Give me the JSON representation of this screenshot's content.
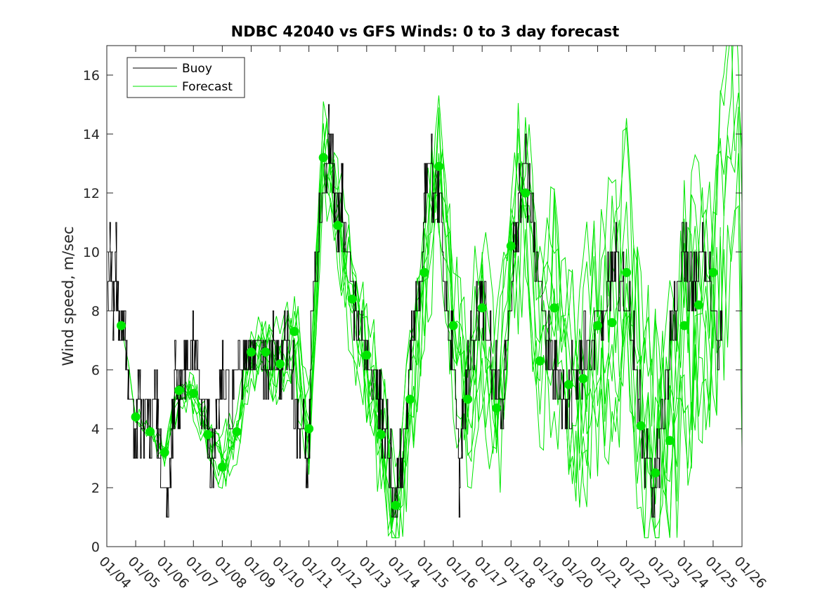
{
  "chart_data": {
    "type": "line",
    "title": "NDBC 42040 vs GFS Winds: 0 to 3 day forecast",
    "xlabel": "",
    "ylabel": "Wind speed, m/sec",
    "xlim": [
      0,
      22
    ],
    "ylim": [
      0,
      17
    ],
    "yticks": [
      0,
      2,
      4,
      6,
      8,
      10,
      12,
      14,
      16
    ],
    "xtick_labels": [
      "01/04",
      "01/05",
      "01/06",
      "01/07",
      "01/08",
      "01/09",
      "01/10",
      "01/11",
      "01/12",
      "01/13",
      "01/14",
      "01/15",
      "01/16",
      "01/17",
      "01/18",
      "01/19",
      "01/20",
      "01/21",
      "01/22",
      "01/23",
      "01/24",
      "01/25",
      "01/26"
    ],
    "grid": false,
    "legend": {
      "location": "top-left",
      "entries": [
        "Buoy",
        "Forecast"
      ]
    },
    "colors": {
      "buoy": "#000000",
      "forecast": "#00e600",
      "markers": "#00e600"
    },
    "buoy_trace": [
      [
        0.0,
        8
      ],
      [
        0.1,
        10
      ],
      [
        0.2,
        8
      ],
      [
        0.3,
        10
      ],
      [
        0.4,
        7
      ],
      [
        0.6,
        8
      ],
      [
        0.7,
        6
      ],
      [
        0.8,
        5
      ],
      [
        1.0,
        4
      ],
      [
        1.1,
        5
      ],
      [
        1.2,
        4
      ],
      [
        1.4,
        5
      ],
      [
        1.5,
        4
      ],
      [
        1.7,
        5
      ],
      [
        1.8,
        3
      ],
      [
        1.9,
        2
      ],
      [
        2.0,
        2
      ],
      [
        2.1,
        1
      ],
      [
        2.2,
        3
      ],
      [
        2.3,
        5
      ],
      [
        2.4,
        6
      ],
      [
        2.5,
        5
      ],
      [
        2.6,
        6
      ],
      [
        2.8,
        6
      ],
      [
        3.0,
        7
      ],
      [
        3.1,
        6
      ],
      [
        3.3,
        5
      ],
      [
        3.4,
        5
      ],
      [
        3.5,
        4
      ],
      [
        3.6,
        3
      ],
      [
        3.7,
        3
      ],
      [
        3.8,
        5
      ],
      [
        3.9,
        5
      ],
      [
        4.1,
        6
      ],
      [
        4.3,
        5
      ],
      [
        4.5,
        6
      ],
      [
        4.7,
        6
      ],
      [
        4.9,
        7
      ],
      [
        5.0,
        6
      ],
      [
        5.2,
        7
      ],
      [
        5.4,
        6
      ],
      [
        5.6,
        6
      ],
      [
        5.8,
        7
      ],
      [
        6.0,
        6
      ],
      [
        6.2,
        7
      ],
      [
        6.4,
        6
      ],
      [
        6.6,
        4
      ],
      [
        6.8,
        4
      ],
      [
        6.9,
        3
      ],
      [
        7.0,
        4
      ],
      [
        7.1,
        8
      ],
      [
        7.3,
        10
      ],
      [
        7.5,
        12
      ],
      [
        7.6,
        13
      ],
      [
        7.7,
        14
      ],
      [
        7.8,
        13
      ],
      [
        7.9,
        12
      ],
      [
        8.0,
        11
      ],
      [
        8.1,
        12
      ],
      [
        8.2,
        11
      ],
      [
        8.4,
        9
      ],
      [
        8.6,
        8
      ],
      [
        8.8,
        7
      ],
      [
        9.0,
        6
      ],
      [
        9.2,
        6
      ],
      [
        9.4,
        5
      ],
      [
        9.6,
        4
      ],
      [
        9.8,
        3
      ],
      [
        10.0,
        1
      ],
      [
        10.1,
        2
      ],
      [
        10.3,
        4
      ],
      [
        10.5,
        6
      ],
      [
        10.7,
        8
      ],
      [
        10.9,
        9
      ],
      [
        11.0,
        12
      ],
      [
        11.2,
        13
      ],
      [
        11.3,
        12
      ],
      [
        11.5,
        12
      ],
      [
        11.7,
        8
      ],
      [
        11.9,
        7
      ],
      [
        12.0,
        6
      ],
      [
        12.2,
        2
      ],
      [
        12.3,
        4
      ],
      [
        12.5,
        6
      ],
      [
        12.7,
        7
      ],
      [
        12.9,
        8
      ],
      [
        13.0,
        8
      ],
      [
        13.2,
        7
      ],
      [
        13.4,
        6
      ],
      [
        13.6,
        6
      ],
      [
        13.7,
        4
      ],
      [
        13.8,
        6
      ],
      [
        14.0,
        9
      ],
      [
        14.2,
        11
      ],
      [
        14.3,
        12
      ],
      [
        14.5,
        13
      ],
      [
        14.6,
        12
      ],
      [
        14.8,
        10
      ],
      [
        15.0,
        9
      ],
      [
        15.2,
        7
      ],
      [
        15.4,
        6
      ],
      [
        15.6,
        6
      ],
      [
        15.8,
        5
      ],
      [
        16.0,
        5
      ],
      [
        16.2,
        6
      ],
      [
        16.4,
        6
      ],
      [
        16.6,
        7
      ],
      [
        16.8,
        7
      ],
      [
        17.0,
        8
      ],
      [
        17.2,
        8
      ],
      [
        17.4,
        9
      ],
      [
        17.6,
        10
      ],
      [
        17.8,
        9
      ],
      [
        18.0,
        8
      ],
      [
        18.2,
        7
      ],
      [
        18.4,
        5
      ],
      [
        18.5,
        4
      ],
      [
        18.7,
        3
      ],
      [
        18.9,
        2
      ],
      [
        19.0,
        2
      ],
      [
        19.2,
        4
      ],
      [
        19.4,
        6
      ],
      [
        19.6,
        7
      ],
      [
        19.8,
        9
      ],
      [
        20.0,
        10
      ],
      [
        20.2,
        9
      ],
      [
        20.4,
        9
      ],
      [
        20.6,
        10
      ],
      [
        20.8,
        9
      ],
      [
        21.0,
        8
      ],
      [
        21.2,
        7
      ],
      [
        21.3,
        8
      ]
    ],
    "forecast_markers": [
      [
        0.5,
        7.5
      ],
      [
        1.0,
        4.4
      ],
      [
        1.5,
        3.9
      ],
      [
        2.0,
        3.2
      ],
      [
        2.5,
        5.3
      ],
      [
        3.0,
        5.2
      ],
      [
        3.5,
        3.8
      ],
      [
        4.0,
        2.7
      ],
      [
        4.5,
        3.9
      ],
      [
        5.0,
        6.6
      ],
      [
        5.5,
        6.6
      ],
      [
        6.0,
        6.2
      ],
      [
        6.5,
        7.3
      ],
      [
        7.0,
        4.0
      ],
      [
        7.5,
        13.2
      ],
      [
        8.0,
        10.9
      ],
      [
        8.5,
        8.4
      ],
      [
        9.0,
        6.5
      ],
      [
        9.5,
        3.8
      ],
      [
        10.0,
        1.4
      ],
      [
        10.5,
        5.0
      ],
      [
        11.0,
        9.3
      ],
      [
        11.5,
        12.9
      ],
      [
        12.0,
        7.5
      ],
      [
        12.5,
        5.0
      ],
      [
        13.0,
        8.1
      ],
      [
        13.5,
        4.7
      ],
      [
        14.0,
        10.2
      ],
      [
        14.5,
        12.0
      ],
      [
        15.0,
        6.3
      ],
      [
        15.5,
        8.1
      ],
      [
        16.0,
        5.5
      ],
      [
        16.5,
        5.7
      ],
      [
        17.0,
        7.5
      ],
      [
        17.5,
        7.6
      ],
      [
        18.0,
        9.3
      ],
      [
        18.5,
        4.1
      ],
      [
        19.0,
        2.5
      ],
      [
        19.5,
        3.6
      ],
      [
        20.0,
        7.5
      ],
      [
        20.5,
        8.2
      ],
      [
        21.0,
        9.3
      ]
    ],
    "forecast_cycle_offsets": [
      0,
      0.25,
      0.5,
      0.75,
      1.0,
      1.25,
      1.5,
      1.75,
      2.0
    ],
    "forecast_peak_end": [
      [
        21.6,
        12.5
      ],
      [
        21.9,
        15.3
      ],
      [
        22.0,
        9.5
      ]
    ]
  }
}
